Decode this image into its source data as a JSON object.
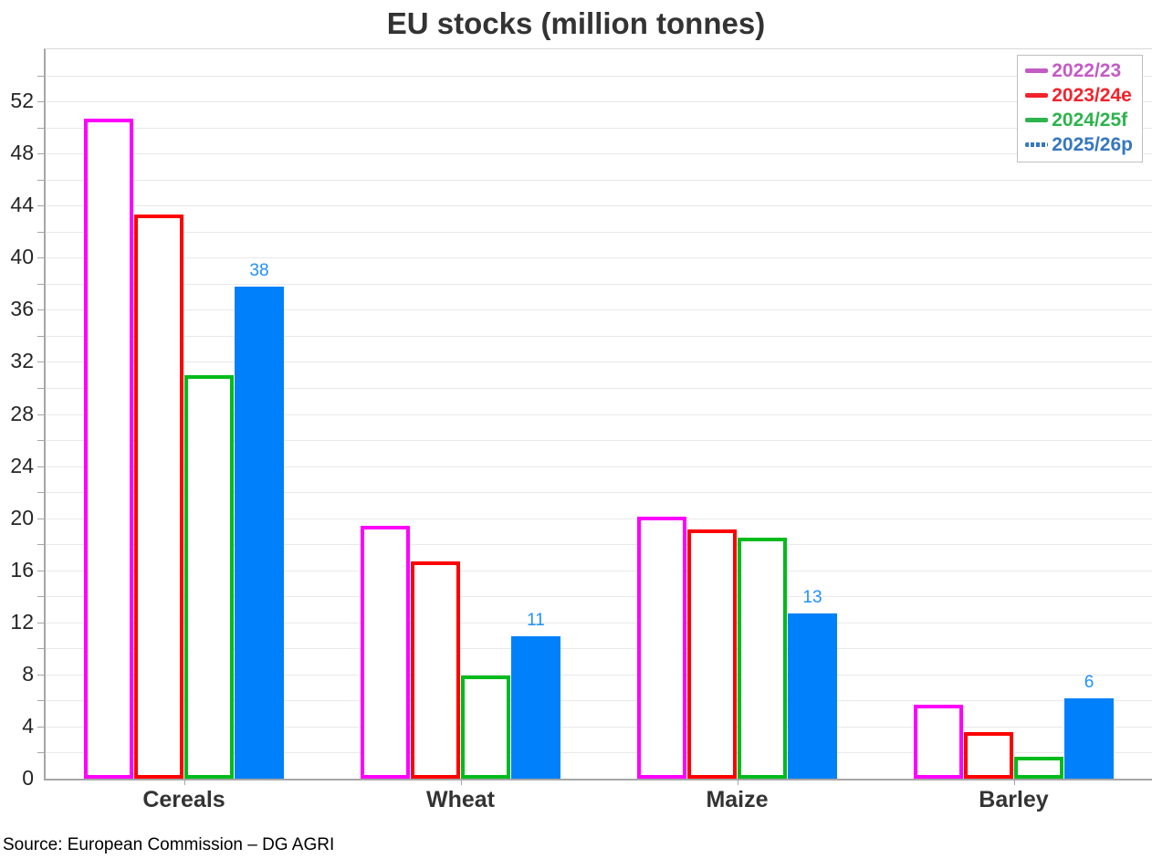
{
  "title": "EU stocks (million tonnes)",
  "source": "Source: European Commission – DG AGRI",
  "colors": {
    "title_text": "#333333",
    "axis_label_text": "#262626",
    "category_label_text": "#333333",
    "gridline": "#E9E9E9",
    "axis_line": "#A6A6A6",
    "plot_border": "#D9D9D9",
    "data_label_blue": "#1E90FF",
    "legend_border": "#BFBFBF"
  },
  "y_tick_labels": [
    0,
    4,
    8,
    12,
    16,
    20,
    24,
    28,
    32,
    36,
    40,
    44,
    48,
    52
  ],
  "chart_data": {
    "type": "bar",
    "title": "EU stocks (million tonnes)",
    "categories": [
      "Cereals",
      "Wheat",
      "Maize",
      "Barley"
    ],
    "series": [
      {
        "name": "2022/23",
        "style": "outline",
        "color": "#FF00FF",
        "legend_color": "#C45BC5",
        "legend_dash": false,
        "values": [
          50.7,
          19.4,
          20.1,
          5.7
        ]
      },
      {
        "name": "2023/24e",
        "style": "outline",
        "color": "#FF0000",
        "legend_color": "#F2232C",
        "legend_dash": false,
        "values": [
          43.3,
          16.7,
          19.1,
          3.6
        ]
      },
      {
        "name": "2024/25f",
        "style": "outline",
        "color": "#00BB1C",
        "legend_color": "#2EB34D",
        "legend_dash": false,
        "values": [
          31.0,
          7.9,
          18.5,
          1.7
        ]
      },
      {
        "name": "2025/26p",
        "style": "fill",
        "color": "#0080FB",
        "legend_color": "#3677BE",
        "legend_dash": true,
        "values": [
          37.8,
          10.9,
          12.7,
          6.2
        ],
        "data_labels": [
          "38",
          "11",
          "13",
          "6"
        ],
        "data_label_color": "#1E90FF"
      }
    ],
    "ylim": [
      0,
      56
    ],
    "y_major_tick": 4,
    "y_minor_tick": 2,
    "grid": true,
    "legend_position": "top-right",
    "xlabel": "",
    "ylabel": ""
  }
}
